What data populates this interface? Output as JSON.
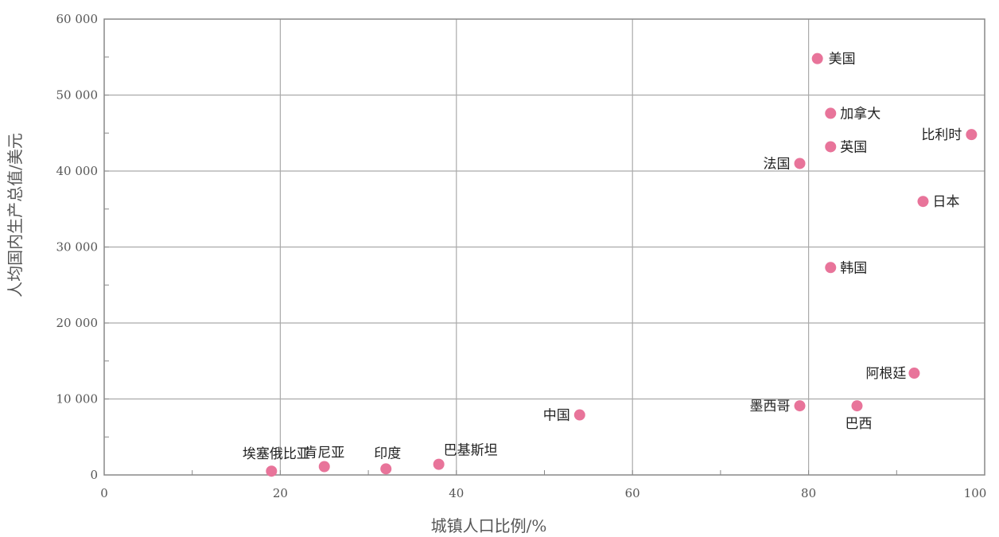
{
  "chart_data": {
    "type": "scatter",
    "title": "",
    "xlabel": "城镇人口比例/%",
    "ylabel": "人均国内生产总值/美元",
    "xlim": [
      0,
      100
    ],
    "ylim": [
      0,
      60000
    ],
    "x_ticks": [
      0,
      20,
      40,
      60,
      80,
      100
    ],
    "x_tick_labels": [
      "0",
      "20",
      "40",
      "60",
      "80",
      "100"
    ],
    "y_ticks": [
      0,
      10000,
      20000,
      30000,
      40000,
      50000,
      60000
    ],
    "y_tick_labels": [
      "0",
      "10 000",
      "20 000",
      "30 000",
      "40 000",
      "50 000",
      "60 000"
    ],
    "grid": true,
    "marker_color": "#e8749a",
    "points": [
      {
        "label": "美国",
        "x": 81,
        "y": 54800
      },
      {
        "label": "加拿大",
        "x": 82.5,
        "y": 47600
      },
      {
        "label": "比利时",
        "x": 98.5,
        "y": 44800
      },
      {
        "label": "英国",
        "x": 82.5,
        "y": 43200
      },
      {
        "label": "法国",
        "x": 79,
        "y": 41000
      },
      {
        "label": "日本",
        "x": 93,
        "y": 36000
      },
      {
        "label": "韩国",
        "x": 82.5,
        "y": 27300
      },
      {
        "label": "阿根廷",
        "x": 92,
        "y": 13400
      },
      {
        "label": "墨西哥",
        "x": 79,
        "y": 9100
      },
      {
        "label": "巴西",
        "x": 85.5,
        "y": 9100
      },
      {
        "label": "中国",
        "x": 54,
        "y": 7900
      },
      {
        "label": "巴基斯坦",
        "x": 38,
        "y": 1400
      },
      {
        "label": "印度",
        "x": 32,
        "y": 800
      },
      {
        "label": "肯尼亚",
        "x": 25,
        "y": 1100
      },
      {
        "label": "埃塞俄比亚",
        "x": 19,
        "y": 500
      }
    ]
  }
}
